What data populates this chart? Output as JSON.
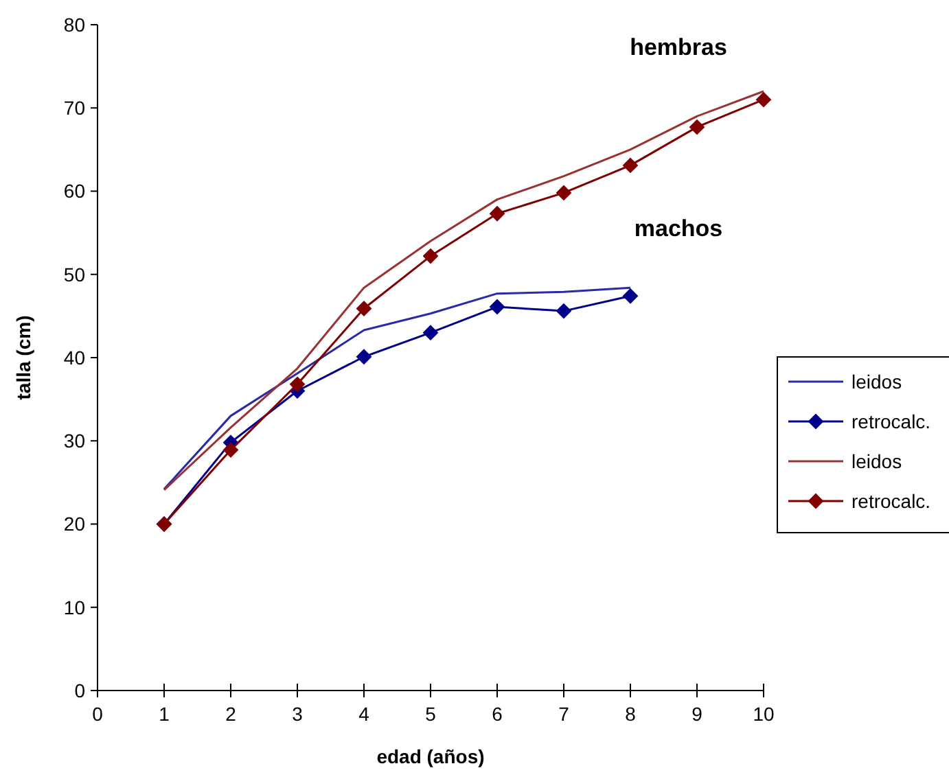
{
  "chart_data": {
    "type": "line",
    "xlabel": "edad (años)",
    "ylabel": "talla (cm)",
    "x": [
      1,
      2,
      3,
      4,
      5,
      6,
      7,
      8,
      9,
      10
    ],
    "series": [
      {
        "name": "leidos",
        "color": "#2a2aa8",
        "marker": "none",
        "values": [
          24.2,
          33.0,
          38.1,
          43.3,
          45.3,
          47.7,
          47.9,
          48.4,
          null,
          null
        ]
      },
      {
        "name": "retrocalc.",
        "color": "#00008b",
        "marker": "diamond",
        "values": [
          20,
          29.8,
          36,
          40.1,
          43,
          46.1,
          45.6,
          47.4,
          null,
          null
        ]
      },
      {
        "name": "leidos",
        "color": "#993333",
        "marker": "none",
        "values": [
          24.1,
          31.6,
          38.7,
          48.4,
          54,
          59,
          61.8,
          65,
          69,
          72
        ]
      },
      {
        "name": "retrocalc.",
        "color": "#800000",
        "marker": "diamond",
        "values": [
          20,
          28.9,
          36.8,
          45.9,
          52.2,
          57.3,
          59.8,
          63.1,
          67.7,
          71
        ]
      }
    ],
    "annotations": [
      "hembras",
      "machos"
    ],
    "xlim": [
      0,
      10
    ],
    "xticks": [
      0,
      1,
      2,
      3,
      4,
      5,
      6,
      7,
      8,
      9,
      10
    ],
    "ylim": [
      0,
      80
    ],
    "yticks": [
      0,
      10,
      20,
      30,
      40,
      50,
      60,
      70,
      80
    ],
    "grid": false,
    "legend": "right"
  }
}
